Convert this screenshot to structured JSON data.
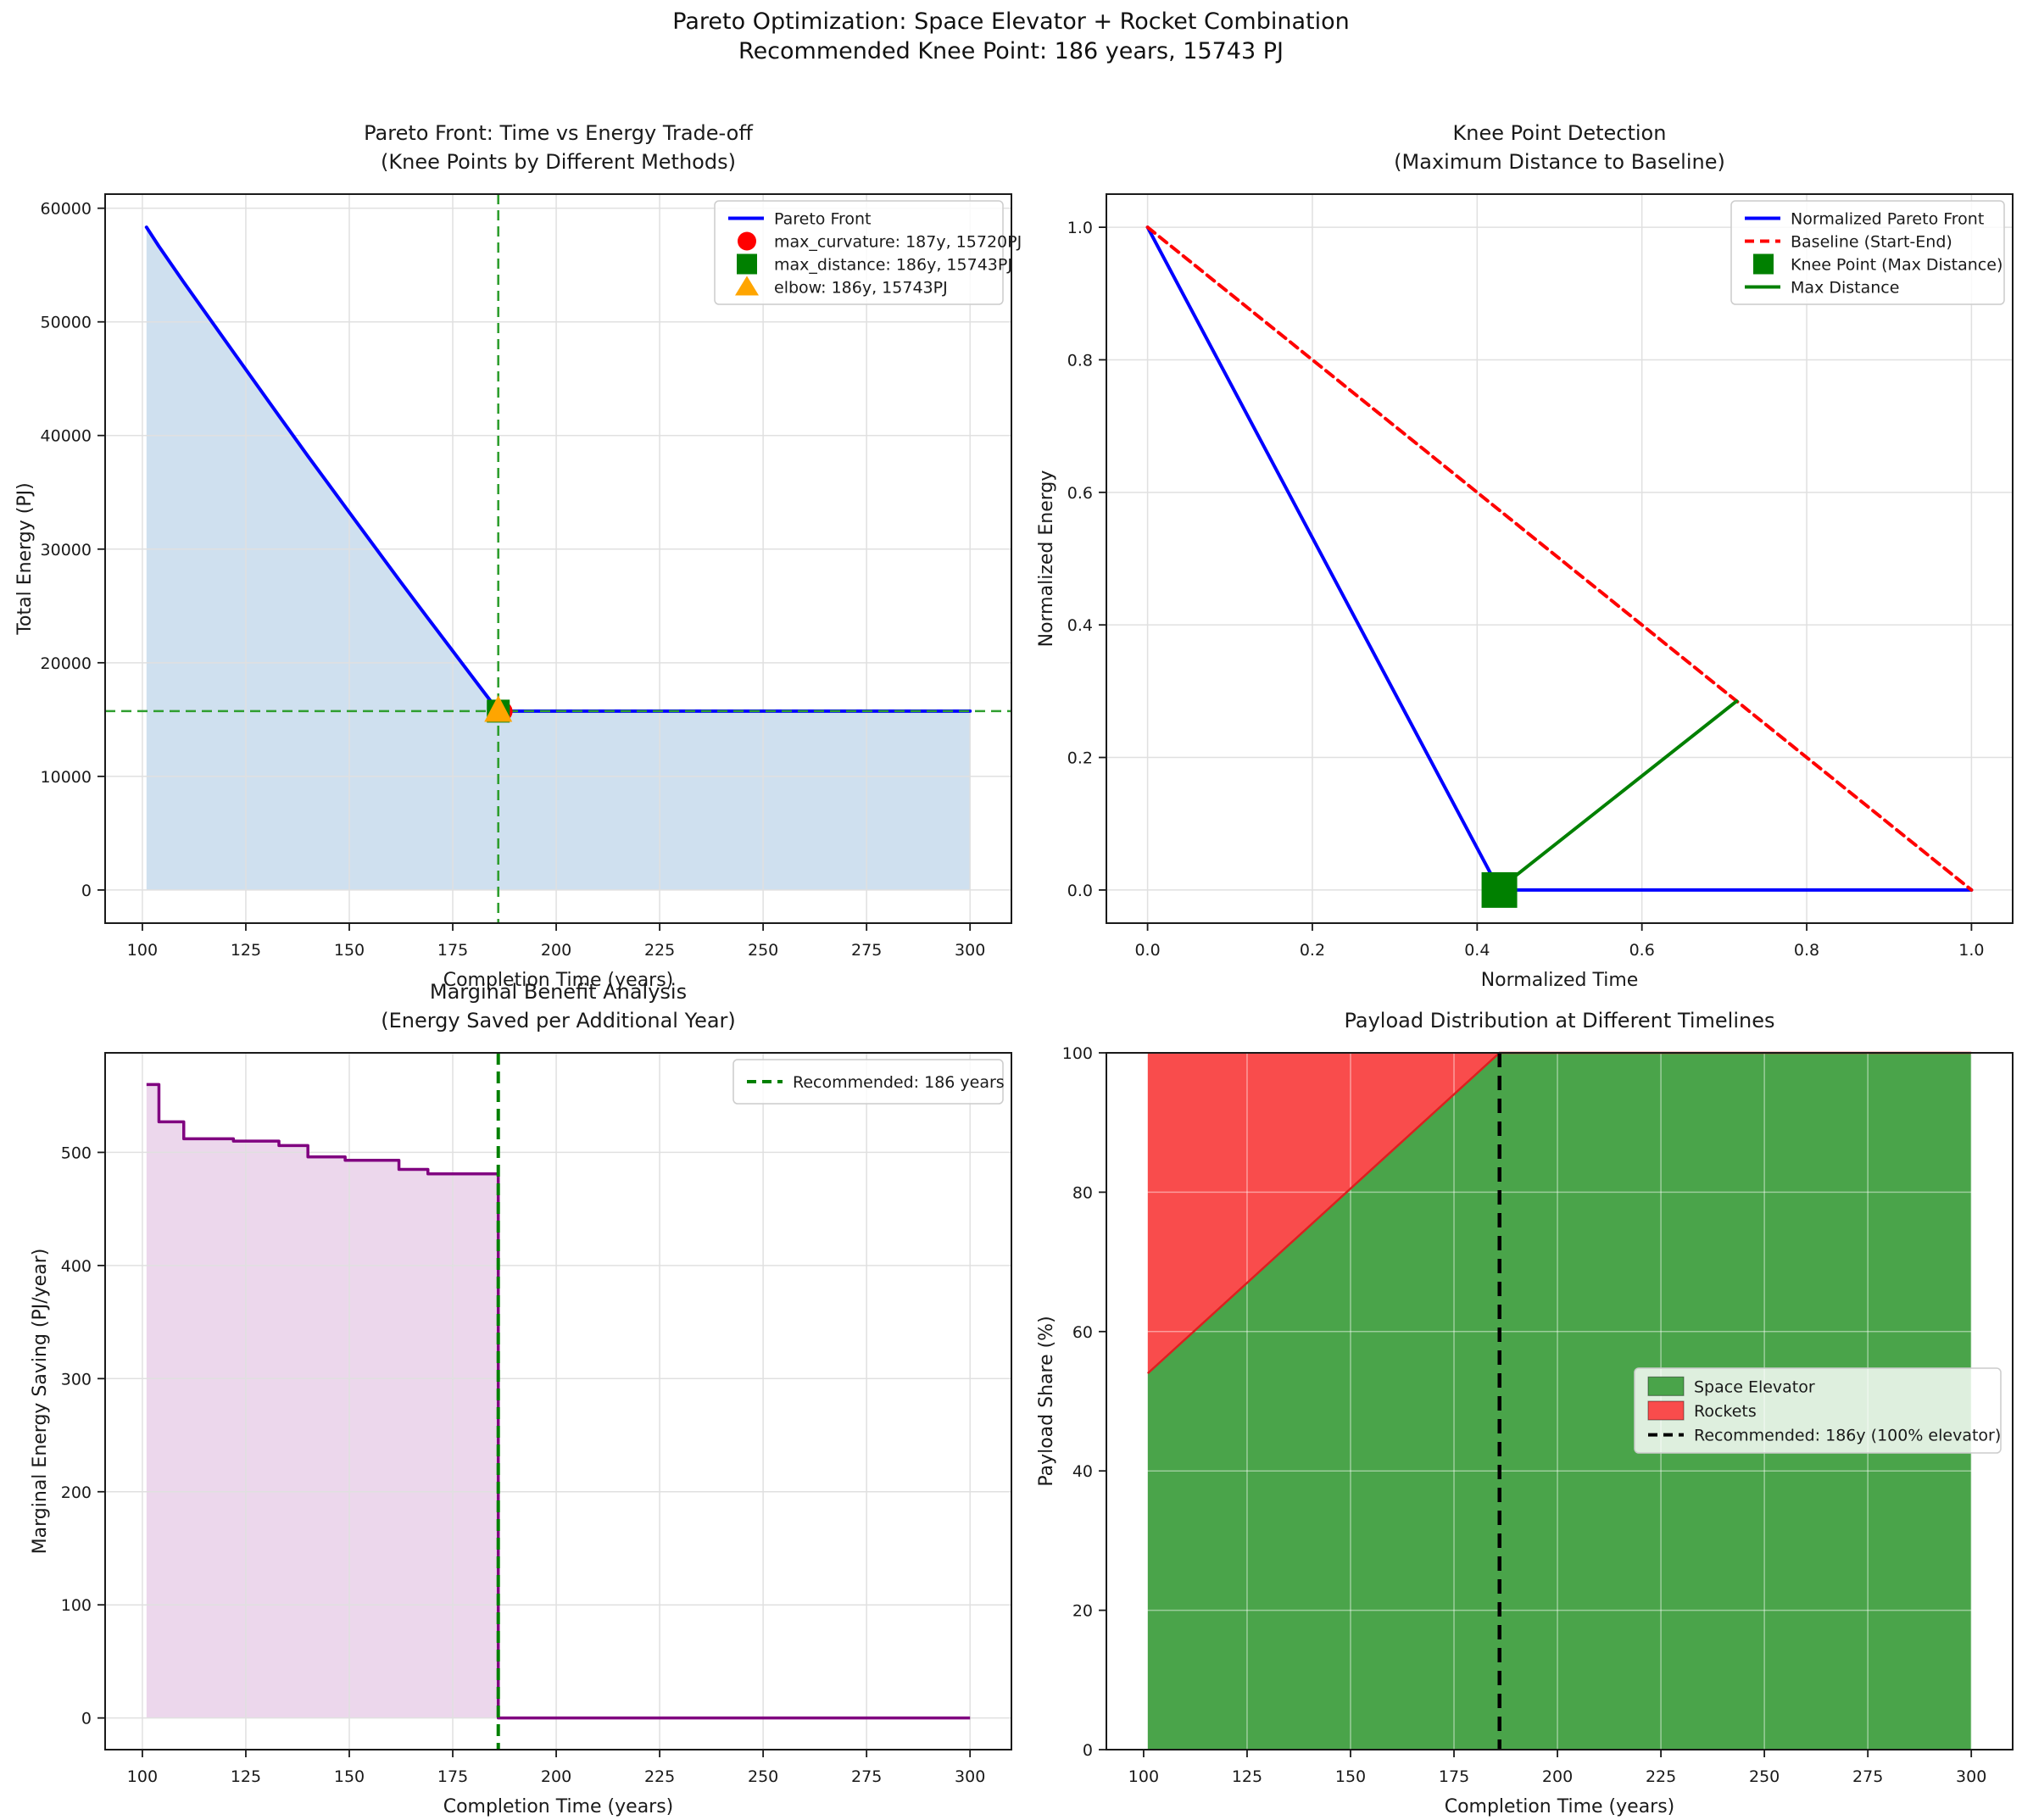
{
  "suptitle": {
    "line1": "Pareto Optimization: Space Elevator + Rocket Combination",
    "line2": "Recommended Knee Point: 186 years, 15743 PJ"
  },
  "chart_data": [
    {
      "id": "pareto_front",
      "type": "line",
      "title": "Pareto Front: Time vs Energy Trade-off",
      "subtitle": "(Knee Points by Different Methods)",
      "xlabel": "Completion Time (years)",
      "ylabel": "Total Energy (PJ)",
      "xlim": [
        91,
        310
      ],
      "ylim": [
        -2916,
        61242
      ],
      "xticks": [
        "100",
        "125",
        "150",
        "175",
        "200",
        "225",
        "250",
        "275",
        "300"
      ],
      "yticks": [
        "0",
        "10000",
        "20000",
        "30000",
        "40000",
        "50000",
        "60000"
      ],
      "series": [
        {
          "name": "Pareto Front",
          "x": [
            101,
            104,
            110,
            122,
            133,
            140,
            149,
            162,
            169,
            186,
            300
          ],
          "y": [
            58326,
            56646,
            53484,
            47340,
            41730,
            38188,
            33724,
            27315,
            23920,
            15743,
            15743
          ],
          "color": "#0000ff",
          "fill": "#cfe0ef",
          "fill_to": 0
        }
      ],
      "knee_point": {
        "x": 186,
        "y": 15743,
        "line_color": "#2f9e2f",
        "width": 2.6,
        "dash": [
          12,
          7
        ]
      },
      "markers": [
        {
          "name": "max_curvature",
          "shape": "circle",
          "x": 187,
          "y": 15720,
          "color": "#ff0000",
          "size": 24
        },
        {
          "name": "max_distance",
          "shape": "square",
          "x": 186,
          "y": 15743,
          "color": "#008000",
          "size": 27
        },
        {
          "name": "elbow",
          "shape": "triangle",
          "x": 186,
          "y": 15743,
          "color": "#ffa500",
          "size": 30
        }
      ],
      "legend": [
        {
          "glyph": "line",
          "color": "#0000ff",
          "label": "Pareto Front"
        },
        {
          "glyph": "circle",
          "color": "#ff0000",
          "label": "max_curvature: 187y, 15720PJ"
        },
        {
          "glyph": "square",
          "color": "#008000",
          "label": "max_distance: 186y, 15743PJ"
        },
        {
          "glyph": "triangle",
          "color": "#ffa500",
          "label": "elbow: 186y, 15743PJ"
        }
      ]
    },
    {
      "id": "knee_detection",
      "type": "line",
      "title": "Knee Point Detection",
      "subtitle": "(Maximum Distance to Baseline)",
      "xlabel": "Normalized Time",
      "ylabel": "Normalized Energy",
      "xlim": [
        -0.05,
        1.05
      ],
      "ylim": [
        -0.05,
        1.05
      ],
      "xticks": [
        "0.0",
        "0.2",
        "0.4",
        "0.6",
        "0.8",
        "1.0"
      ],
      "yticks": [
        "0.0",
        "0.2",
        "0.4",
        "0.6",
        "0.8",
        "1.0"
      ],
      "series": [
        {
          "name": "Normalized Pareto Front",
          "x": [
            0,
            0.427,
            1.0
          ],
          "y": [
            1.0,
            0.0,
            0.0
          ],
          "color": "#0000ff"
        },
        {
          "name": "Baseline (Start-End)",
          "x": [
            0,
            1.0
          ],
          "y": [
            1.0,
            0.0
          ],
          "color": "#ff0000",
          "dash": [
            11,
            7
          ]
        },
        {
          "name": "Max Distance",
          "x": [
            0.437,
            0.715
          ],
          "y": [
            0.012,
            0.285
          ],
          "color": "#008000"
        }
      ],
      "markers": [
        {
          "name": "knee_point",
          "shape": "square",
          "x": 0.427,
          "y": 0.0,
          "color": "#008000",
          "size": 42
        }
      ],
      "legend": [
        {
          "glyph": "line",
          "color": "#0000ff",
          "label": "Normalized Pareto Front"
        },
        {
          "glyph": "dash",
          "color": "#ff0000",
          "label": "Baseline (Start-End)"
        },
        {
          "glyph": "square",
          "color": "#008000",
          "label": "Knee Point (Max Distance)"
        },
        {
          "glyph": "line",
          "color": "#008000",
          "label": "Max Distance"
        }
      ]
    },
    {
      "id": "marginal_benefit",
      "type": "step-area",
      "title": "Marginal Benefit Analysis",
      "subtitle": "(Energy Saved per Additional Year)",
      "xlabel": "Completion Time (years)",
      "ylabel": "Marginal Energy Saving (PJ/year)",
      "xlim": [
        91,
        310
      ],
      "ylim": [
        -28,
        588
      ],
      "xticks": [
        "100",
        "125",
        "150",
        "175",
        "200",
        "225",
        "250",
        "275",
        "300"
      ],
      "yticks": [
        "0",
        "100",
        "200",
        "300",
        "400",
        "500"
      ],
      "step": {
        "x": [
          101,
          104,
          110,
          122,
          133,
          140,
          149,
          162,
          169,
          186,
          300
        ],
        "y": [
          560,
          527,
          512,
          510,
          506,
          496,
          493,
          485,
          481,
          0,
          0
        ],
        "color": "#800080",
        "fill": "#ecd7ec"
      },
      "recommended": {
        "x": 186,
        "line_color": "#008000",
        "width": 4,
        "dash": [
          14,
          8
        ]
      },
      "legend": [
        {
          "glyph": "dash",
          "color": "#008000",
          "label": "Recommended: 186 years"
        }
      ]
    },
    {
      "id": "payload_distribution",
      "type": "area",
      "title": "Payload Distribution at Different Timelines",
      "subtitle": "",
      "xlabel": "Completion Time (years)",
      "ylabel": "Payload Share (%)",
      "xlim": [
        91,
        310
      ],
      "ylim": [
        0,
        100
      ],
      "xticks": [
        "100",
        "125",
        "150",
        "175",
        "200",
        "225",
        "250",
        "275",
        "300"
      ],
      "yticks": [
        "0",
        "20",
        "40",
        "60",
        "80",
        "100"
      ],
      "stack": {
        "x": [
          101,
          186,
          300
        ],
        "elevator": [
          54,
          100,
          100
        ],
        "total": 100,
        "elevator_color": "#4aa44a",
        "rockets_color": "#f94c4c",
        "edge_color": "#dd1f1f"
      },
      "recommended": {
        "x": 186,
        "line_color": "#000000",
        "width": 4.5,
        "dash": [
          17,
          10
        ]
      },
      "legend": [
        {
          "glyph": "patch",
          "color": "#4aa44a",
          "label": "Space Elevator"
        },
        {
          "glyph": "patch",
          "color": "#f94c4c",
          "label": "Rockets"
        },
        {
          "glyph": "dash",
          "color": "#000000",
          "label": "Recommended: 186y (100% elevator)"
        }
      ]
    }
  ]
}
